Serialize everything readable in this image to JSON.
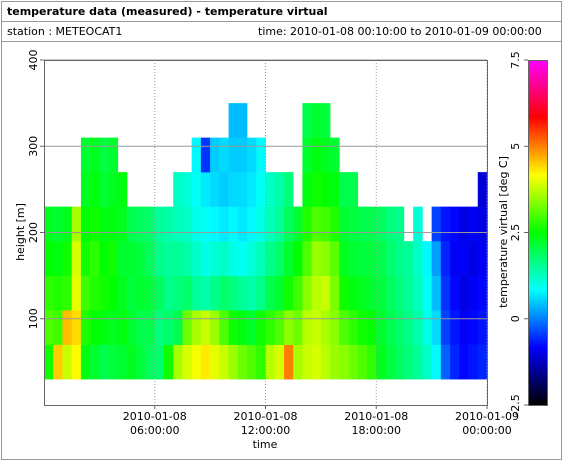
{
  "chart_data": {
    "type": "heatmap",
    "title": "temperature data (measured) - temperature virtual",
    "station": "station : METEOCAT1",
    "time_range": "time: 2010-01-08 00:10:00 to 2010-01-09 00:00:00",
    "x_label": "time",
    "y_label": "height [m]",
    "colorbar_label": "temperature virtual [deg C]",
    "xlim": [
      0,
      24
    ],
    "xticks": [
      {
        "value": 6,
        "label": "2010-01-08 06:00:00"
      },
      {
        "value": 12,
        "label": "2010-01-08 12:00:00"
      },
      {
        "value": 18,
        "label": "2010-01-08 18:00:00"
      },
      {
        "value": 24,
        "label": "2010-01-09 00:00:00"
      }
    ],
    "ylim": [
      0,
      400
    ],
    "yticks": [
      100,
      200,
      300,
      400
    ],
    "zlim": [
      -2.5,
      7.5
    ],
    "zticks": [
      -2.5,
      0,
      2.5,
      5,
      7.5
    ],
    "colormap": [
      "#000000",
      "#0000ff",
      "#00ffff",
      "#00ff00",
      "#ffff00",
      "#ff0000",
      "#ff00ff"
    ],
    "grid": true,
    "xbins": [
      0,
      0.5,
      1,
      1.5,
      2,
      2.5,
      3,
      3.5,
      4,
      4.5,
      5,
      5.5,
      6,
      6.5,
      7,
      7.5,
      8,
      8.5,
      9,
      9.5,
      10,
      10.5,
      11,
      11.5,
      12,
      12.5,
      13,
      13.5,
      14,
      14.5,
      15,
      15.5,
      16,
      16.5,
      17,
      17.5,
      18,
      18.5,
      19,
      19.5,
      20,
      20.5,
      21,
      21.5,
      22,
      22.5,
      23,
      23.5,
      24
    ],
    "ybins": [
      30,
      70,
      110,
      150,
      190,
      230,
      270,
      310,
      350
    ],
    "z": [
      [
        2.6,
        3.0,
        2.8,
        2.5,
        2.3
      ],
      [
        4.5,
        2.9,
        2.7,
        2.4,
        2.2
      ],
      [
        3.8,
        4.6,
        2.8,
        2.6,
        2.3
      ],
      [
        4.2,
        4.4,
        4.0,
        3.9,
        3.6
      ],
      [
        2.4,
        2.7,
        2.9,
        2.6,
        2.5,
        2.3,
        2.2
      ],
      [
        2.2,
        2.5,
        2.7,
        2.8,
        2.6,
        2.4,
        2.3
      ],
      [
        2.0,
        2.4,
        2.6,
        2.5,
        2.4,
        2.2,
        2.1
      ],
      [
        2.1,
        2.3,
        2.5,
        2.6,
        2.4,
        2.3,
        2.2
      ],
      [
        2.2,
        2.4,
        2.3,
        2.2,
        2.3,
        2.4
      ],
      [
        2.3,
        2.2,
        2.1,
        2.2,
        2.0
      ],
      [
        2.1,
        2.0,
        2.2,
        2.1,
        1.9
      ],
      [
        1.9,
        2.0,
        2.1,
        1.9,
        1.8
      ],
      [
        1.8,
        1.7,
        1.9,
        1.6,
        1.5
      ],
      [
        2.6,
        1.8,
        1.6,
        1.5,
        1.4
      ],
      [
        3.6,
        2.0,
        1.7,
        1.5,
        1.3,
        1.2
      ],
      [
        3.9,
        3.2,
        1.8,
        1.4,
        1.2,
        1.1
      ],
      [
        4.1,
        3.6,
        1.5,
        1.2,
        1.0,
        0.9,
        0.8
      ],
      [
        4.3,
        3.8,
        1.4,
        1.0,
        0.9,
        0.7,
        -0.5
      ],
      [
        4.0,
        3.5,
        1.6,
        1.1,
        0.8,
        0.6,
        0.5
      ],
      [
        3.8,
        3.0,
        1.8,
        1.2,
        0.7,
        0.5,
        0.6
      ],
      [
        3.5,
        2.6,
        1.7,
        1.0,
        0.8,
        0.6,
        0.5,
        0.4
      ],
      [
        3.2,
        2.4,
        1.5,
        0.9,
        0.7,
        0.6,
        0.5,
        0.4
      ],
      [
        3.0,
        2.2,
        1.4,
        1.1,
        0.8,
        0.7,
        0.6
      ],
      [
        2.8,
        2.6,
        1.6,
        1.3,
        1.0,
        0.9,
        0.8
      ],
      [
        3.7,
        2.8,
        2.0,
        1.6,
        1.3,
        1.2
      ],
      [
        3.9,
        3.0,
        2.2,
        1.8,
        1.5,
        1.4
      ],
      [
        5.0,
        3.4,
        2.6,
        2.2,
        1.9,
        1.7
      ],
      [
        3.6,
        3.2,
        2.9,
        2.5,
        2.2
      ],
      [
        3.8,
        3.7,
        3.4,
        3.0,
        2.7,
        2.4,
        2.2,
        2.0
      ],
      [
        3.9,
        3.8,
        3.7,
        3.5,
        3.0,
        2.6,
        2.4,
        2.2
      ],
      [
        3.7,
        3.6,
        3.8,
        3.4,
        2.9,
        2.5,
        2.3,
        2.1
      ],
      [
        3.5,
        3.4,
        3.3,
        3.1,
        2.7,
        2.4,
        2.2
      ],
      [
        3.4,
        3.0,
        2.6,
        2.3,
        2.2,
        2.0
      ],
      [
        3.2,
        2.8,
        2.4,
        2.2,
        2.1,
        2.0
      ],
      [
        3.0,
        2.6,
        2.3,
        2.1,
        2.0
      ],
      [
        2.8,
        2.5,
        2.2,
        2.1,
        2.0
      ],
      [
        2.3,
        2.2,
        2.1,
        2.0,
        1.9
      ],
      [
        2.1,
        2.0,
        1.9,
        1.8,
        1.7
      ],
      [
        1.9,
        1.8,
        1.7,
        1.6,
        1.6
      ],
      [
        1.7,
        1.6,
        1.5,
        1.5
      ],
      [
        1.5,
        1.4,
        1.3,
        1.2,
        1.1
      ],
      [
        1.2,
        1.0,
        0.9,
        0.8
      ],
      [
        0.8,
        0.6,
        0.4,
        0.2,
        -0.4
      ],
      [
        -0.2,
        -0.4,
        -0.5,
        -0.6,
        -0.7
      ],
      [
        -0.6,
        -0.7,
        -0.8,
        -0.9,
        -0.8
      ],
      [
        -0.8,
        -0.9,
        -1.0,
        -0.9,
        -1.0
      ],
      [
        -0.7,
        -0.8,
        -0.9,
        -1.0,
        -0.9
      ],
      [
        -0.6,
        -0.7,
        -0.8,
        -0.9,
        -1.0,
        -1.1
      ]
    ]
  }
}
